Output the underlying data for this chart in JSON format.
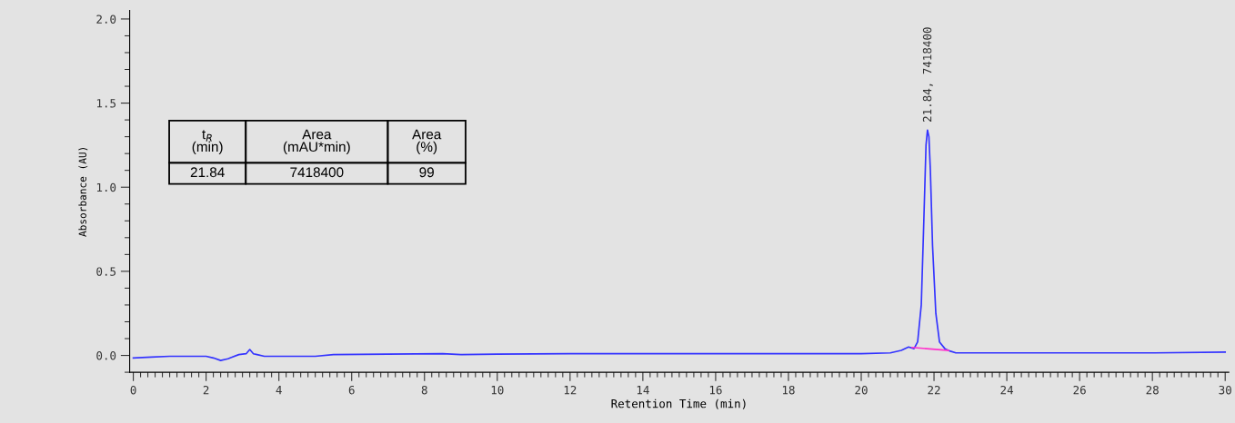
{
  "chart_data": {
    "type": "line",
    "xlabel": "Retention Time (min)",
    "ylabel": "Absorbance (AU)",
    "xlim": [
      -0.1,
      30.1
    ],
    "ylim": [
      -0.1,
      2.05
    ],
    "xticks": [
      0,
      2,
      4,
      6,
      8,
      10,
      12,
      14,
      16,
      18,
      20,
      22,
      24,
      26,
      28,
      30
    ],
    "yticks": [
      {
        "value": 0,
        "label": "0.0"
      },
      0.5,
      {
        "value": 1,
        "label": "1.0"
      },
      1.5,
      {
        "value": 2,
        "label": "2.0"
      }
    ],
    "grid": false,
    "legend": false,
    "marker": "none",
    "line_style": "solid",
    "series": [
      {
        "color": "#3333ff",
        "x": [
          0,
          0.5,
          1,
          2,
          2.2,
          2.4,
          2.6,
          2.9,
          3.1,
          3.2,
          3.3,
          3.4,
          3.6,
          5.0,
          5.5,
          8.5,
          9.0,
          10,
          12,
          16,
          20,
          20.8,
          21.1,
          21.3,
          21.45,
          21.55,
          21.65,
          21.72,
          21.78,
          21.82,
          21.86,
          21.9,
          21.96,
          22.05,
          22.15,
          22.3,
          22.45,
          22.6,
          24,
          28,
          30
        ],
        "values": [
          -0.015,
          -0.01,
          -0.005,
          -0.005,
          -0.015,
          -0.03,
          -0.02,
          0.005,
          0.01,
          0.035,
          0.01,
          0.005,
          -0.005,
          -0.005,
          0.005,
          0.01,
          0.005,
          0.008,
          0.01,
          0.01,
          0.01,
          0.015,
          0.03,
          0.05,
          0.04,
          0.08,
          0.3,
          0.8,
          1.25,
          1.34,
          1.3,
          1.1,
          0.65,
          0.25,
          0.08,
          0.04,
          0.025,
          0.015,
          0.015,
          0.015,
          0.02
        ]
      },
      {
        "color": "#ff33cc",
        "x": [
          21.4,
          22.4
        ],
        "values": [
          0.047,
          0.03
        ]
      }
    ],
    "annotations": [
      {
        "text": "21.84, 7418400",
        "x": 21.84,
        "y": 1.34
      },
      "t$_{R}$\n(min)",
      "Area\n(mAU*min)",
      "Area\n(%)",
      "21.84",
      "7418400",
      "99"
    ]
  }
}
